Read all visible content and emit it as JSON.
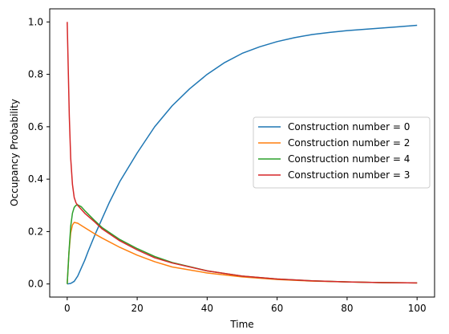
{
  "chart_data": {
    "type": "line",
    "title": "",
    "xlabel": "Time",
    "ylabel": "Occupancy Probability",
    "xlim": [
      -5,
      105
    ],
    "ylim": [
      -0.05,
      1.05
    ],
    "xticks": [
      0,
      20,
      40,
      60,
      80,
      100
    ],
    "xtick_labels": [
      "0",
      "20",
      "40",
      "60",
      "80",
      "100"
    ],
    "yticks": [
      0.0,
      0.2,
      0.4,
      0.6,
      0.8,
      1.0
    ],
    "ytick_labels": [
      "0.0",
      "0.2",
      "0.4",
      "0.6",
      "0.8",
      "1.0"
    ],
    "grid": false,
    "legend_position": "right",
    "series": [
      {
        "name": "Construction number = 0",
        "color": "#1f77b4",
        "x": [
          0,
          1,
          2,
          3,
          4,
          5,
          6,
          8,
          10,
          12,
          15,
          20,
          25,
          30,
          35,
          40,
          45,
          50,
          55,
          60,
          65,
          70,
          75,
          80,
          85,
          90,
          95,
          100
        ],
        "y": [
          0.0,
          0.002,
          0.01,
          0.03,
          0.06,
          0.09,
          0.125,
          0.19,
          0.25,
          0.31,
          0.39,
          0.5,
          0.6,
          0.68,
          0.745,
          0.8,
          0.845,
          0.88,
          0.905,
          0.925,
          0.94,
          0.952,
          0.96,
          0.967,
          0.972,
          0.977,
          0.982,
          0.987
        ]
      },
      {
        "name": "Construction number = 2",
        "color": "#ff7f0e",
        "x": [
          0,
          0.5,
          1,
          1.5,
          2,
          3,
          5,
          8,
          10,
          15,
          20,
          25,
          30,
          40,
          50,
          60,
          70,
          80,
          90,
          100
        ],
        "y": [
          0.0,
          0.12,
          0.195,
          0.225,
          0.235,
          0.232,
          0.215,
          0.19,
          0.175,
          0.14,
          0.11,
          0.085,
          0.065,
          0.042,
          0.027,
          0.017,
          0.011,
          0.008,
          0.005,
          0.004
        ]
      },
      {
        "name": "Construction number = 4",
        "color": "#2ca02c",
        "x": [
          0,
          0.5,
          1,
          1.5,
          2,
          2.5,
          3,
          4,
          5,
          8,
          10,
          15,
          20,
          25,
          30,
          40,
          50,
          60,
          70,
          80,
          90,
          100
        ],
        "y": [
          0.0,
          0.12,
          0.22,
          0.27,
          0.292,
          0.3,
          0.302,
          0.295,
          0.28,
          0.24,
          0.215,
          0.17,
          0.135,
          0.105,
          0.082,
          0.05,
          0.03,
          0.019,
          0.012,
          0.008,
          0.005,
          0.004
        ]
      },
      {
        "name": "Construction number = 3",
        "color": "#d62728",
        "x": [
          0,
          0.3,
          0.6,
          1,
          1.5,
          2,
          2.5,
          3,
          4,
          5,
          8,
          10,
          15,
          20,
          25,
          30,
          40,
          50,
          60,
          70,
          80,
          90,
          100
        ],
        "y": [
          1.0,
          0.82,
          0.64,
          0.48,
          0.38,
          0.33,
          0.31,
          0.3,
          0.285,
          0.27,
          0.235,
          0.21,
          0.165,
          0.13,
          0.1,
          0.08,
          0.05,
          0.03,
          0.019,
          0.012,
          0.008,
          0.005,
          0.004
        ]
      }
    ]
  }
}
